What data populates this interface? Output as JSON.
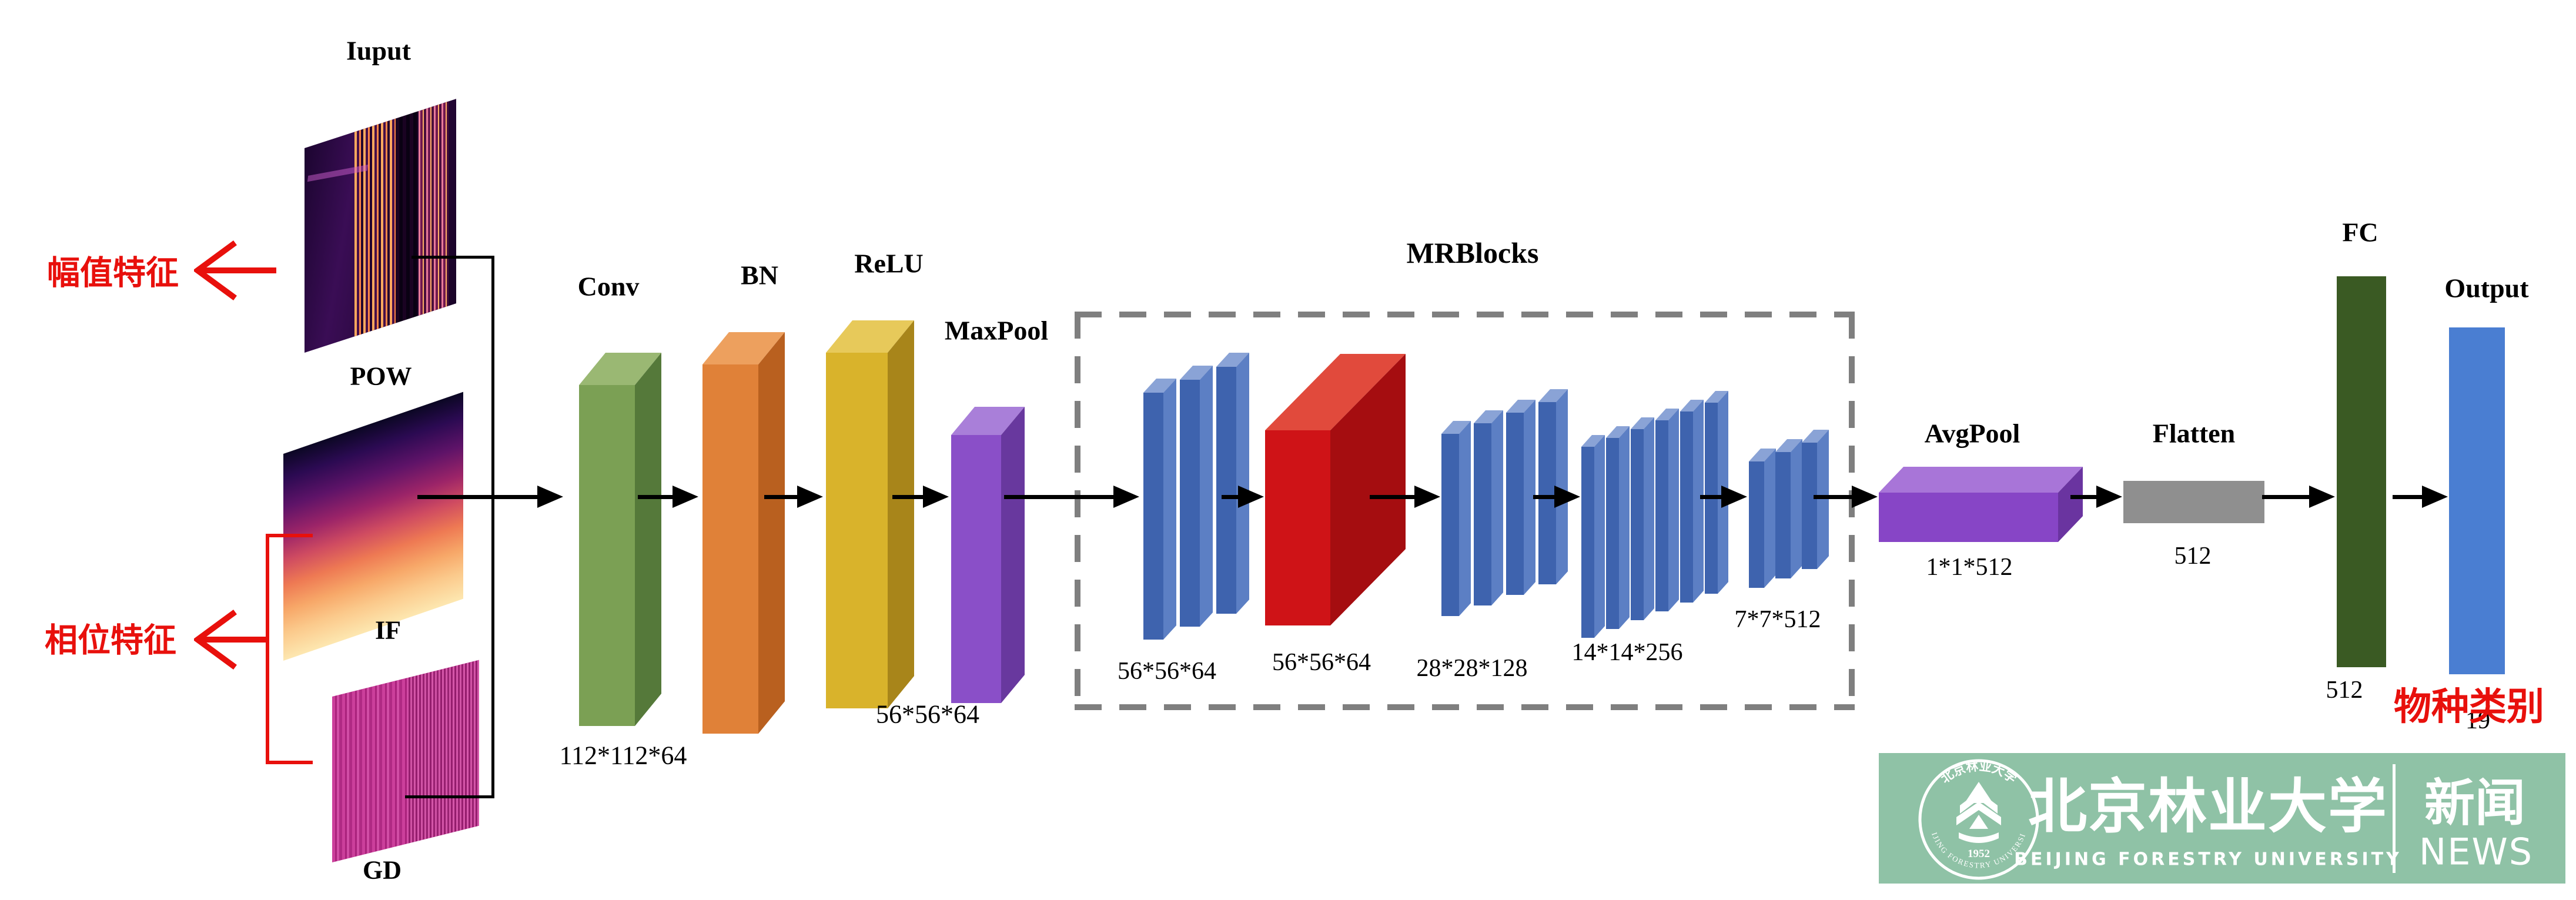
{
  "input": {
    "title": "Iuput",
    "pow": "POW",
    "if": "IF",
    "gd": "GD"
  },
  "annotations": {
    "amplitude": "幅值特征",
    "phase": "相位特征",
    "species": "物种类别"
  },
  "stem": {
    "conv": "Conv",
    "bn": "BN",
    "relu": "ReLU",
    "maxpool": "MaxPool",
    "conv_dims": "112*112*64",
    "maxpool_dims": "56*56*64"
  },
  "mrblocks": {
    "title": "MRBlocks",
    "g1_dims": "56*56*64",
    "red_dims": "56*56*64",
    "g3_dims": "28*28*128",
    "g4_dims": "14*14*256",
    "g5_dims": "7*7*512"
  },
  "head": {
    "avgpool": "AvgPool",
    "avgpool_dims": "1*1*512",
    "flatten": "Flatten",
    "flatten_dims": "512",
    "fc": "FC",
    "fc_dims": "512",
    "output": "Output",
    "output_dims": "19"
  },
  "banner": {
    "name_cn": "北京林业大学",
    "name_en": "BEIJING FORESTRY UNIVERSITY",
    "ring_text": "BEIJING FORESTRY UNIVERSITY",
    "year": "1952",
    "news_cn": "新闻",
    "news_en": "NEWS"
  },
  "colors": {
    "red_accent": "#e8100c",
    "black": "#000000",
    "dash_gray": "#7f7f7f",
    "banner_green": "#8fc2a6",
    "white": "#ffffff",
    "conv": [
      "#7ba054",
      "#9ab873",
      "#55793a"
    ],
    "bn": [
      "#e08138",
      "#eda05e",
      "#b9601f"
    ],
    "relu": [
      "#d9b32b",
      "#e7c95a",
      "#a8851a"
    ],
    "maxpool": [
      "#8a4fc8",
      "#a97fd9",
      "#68389e"
    ],
    "blue": [
      "#3e63ae",
      "#8aa3d6",
      "#5c7fc4"
    ],
    "redblock": [
      "#cf1317",
      "#e14a3c",
      "#a50d10"
    ],
    "avgpool": [
      "#8745c6",
      "#a875d8",
      "#6a34a0"
    ],
    "flatten_gray": "#8f8f8f",
    "fc_green": "#3a5a23",
    "output_blue": "#4a7ed2"
  }
}
